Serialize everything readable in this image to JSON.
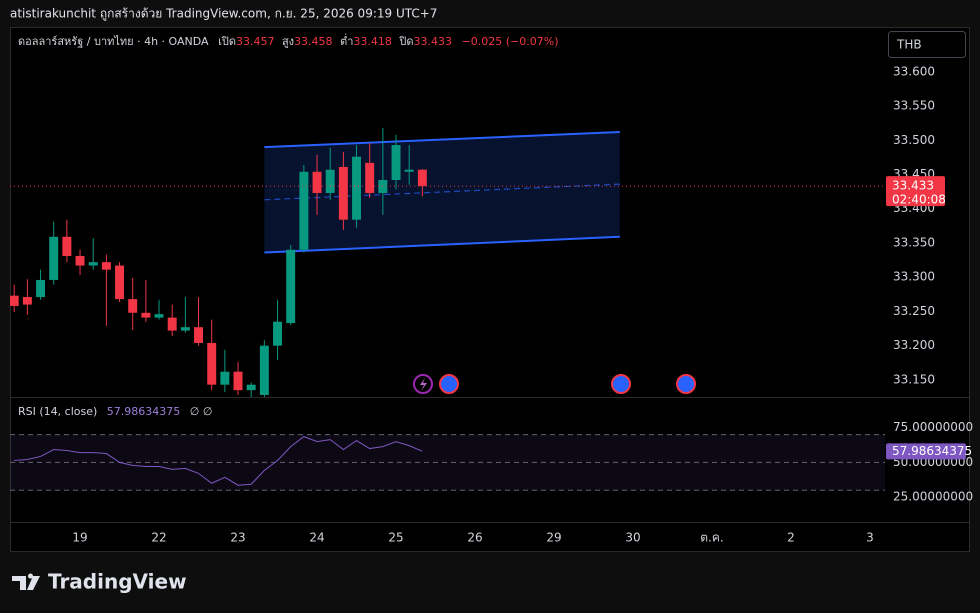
{
  "header": "atistirakunchit ถูกสร้างด้วย TradingView.com, ก.ย. 25, 2026 09:19 UTC+7",
  "currency_button": "THB",
  "brand": "TradingView",
  "chart_data": [
    {
      "type": "candlestick",
      "title": "ดอลลาร์สหรัฐ / บาทไทย · 4h · OANDA",
      "ohlc_labels": [
        "เปิด",
        "สูง",
        "ต่ำ",
        "ปิด"
      ],
      "change": "−0.025 (−0.07%)",
      "x": [
        -5,
        -4,
        -3,
        -2,
        -1,
        0,
        1,
        2,
        3,
        4,
        5,
        6,
        7,
        8,
        9,
        10,
        11,
        12,
        13,
        14,
        15,
        16,
        17,
        18,
        19,
        20,
        21,
        22,
        23,
        24,
        25,
        26
      ],
      "open": [
        33.273,
        33.271,
        33.271,
        33.296,
        33.359,
        33.331,
        33.317,
        33.322,
        33.317,
        33.268,
        33.248,
        33.241,
        33.241,
        33.222,
        33.227,
        33.204,
        33.143,
        33.162,
        33.135,
        33.128,
        33.2,
        33.233,
        33.34,
        33.454,
        33.423,
        33.461,
        33.384,
        33.467,
        33.423,
        33.442,
        33.454,
        33.457
      ],
      "high": [
        33.289,
        33.297,
        33.311,
        33.381,
        33.384,
        33.34,
        33.357,
        33.333,
        33.322,
        33.299,
        33.296,
        33.267,
        33.26,
        33.271,
        33.271,
        33.238,
        33.194,
        33.176,
        33.146,
        33.208,
        33.267,
        33.347,
        33.464,
        33.479,
        33.489,
        33.483,
        33.493,
        33.496,
        33.518,
        33.508,
        33.493,
        33.458
      ],
      "low": [
        33.249,
        33.245,
        33.267,
        33.289,
        33.322,
        33.303,
        33.311,
        33.229,
        33.264,
        33.223,
        33.235,
        33.238,
        33.214,
        33.219,
        33.2,
        33.135,
        33.132,
        33.128,
        33.125,
        33.125,
        33.179,
        33.23,
        33.336,
        33.391,
        33.413,
        33.369,
        33.372,
        33.416,
        33.391,
        33.428,
        33.435,
        33.418
      ],
      "close": [
        33.258,
        33.26,
        33.296,
        33.359,
        33.331,
        33.317,
        33.322,
        33.311,
        33.268,
        33.248,
        33.241,
        33.246,
        33.222,
        33.227,
        33.204,
        33.143,
        33.162,
        33.135,
        33.143,
        33.2,
        33.235,
        33.34,
        33.454,
        33.423,
        33.457,
        33.384,
        33.476,
        33.423,
        33.442,
        33.493,
        33.457,
        33.433
      ],
      "up_color": "#089981",
      "down_color": "#f23645",
      "xlim": [
        -5.32,
        61.14
      ],
      "ylim": [
        33.125,
        33.664
      ],
      "yticks": [
        {
          "value": 33.6,
          "label": "33.600"
        },
        {
          "value": 33.55,
          "label": "33.550"
        },
        {
          "value": 33.5,
          "label": "33.500"
        },
        {
          "value": 33.45,
          "label": "33.450"
        },
        {
          "value": 33.4,
          "label": "33.400"
        },
        {
          "value": 33.35,
          "label": "33.350"
        },
        {
          "value": 33.3,
          "label": "33.300"
        },
        {
          "value": 33.25,
          "label": "33.250"
        },
        {
          "value": 33.2,
          "label": "33.200"
        },
        {
          "value": 33.15,
          "label": "33.150"
        }
      ],
      "countdown": "02:40:08",
      "channel": {
        "color": "#2962ff",
        "upper": {
          "x": [
            14,
            41
          ],
          "y": [
            33.49,
            33.512
          ]
        },
        "middle": {
          "x": [
            14,
            41
          ],
          "y": [
            33.413,
            33.436
          ]
        },
        "lower": {
          "x": [
            14,
            41
          ],
          "y": [
            33.336,
            33.359
          ]
        }
      }
    },
    {
      "type": "line",
      "title": "RSI (14, close)",
      "inputs": "∅ ∅",
      "color": "#7e57c2",
      "x": [
        -5,
        -4,
        -3,
        -2,
        -1,
        0,
        1,
        2,
        3,
        4,
        5,
        6,
        7,
        8,
        9,
        10,
        11,
        12,
        13,
        14,
        15,
        16,
        17,
        18,
        19,
        20,
        21,
        22,
        23,
        24,
        25,
        26
      ],
      "values": [
        51.4,
        52.1,
        54.3,
        59.3,
        58.6,
        57.1,
        57.1,
        56.4,
        50.0,
        47.9,
        47.1,
        47.1,
        45.0,
        45.7,
        42.1,
        35.0,
        39.3,
        33.6,
        34.3,
        44.3,
        51.4,
        61.4,
        68.6,
        65.0,
        66.4,
        59.3,
        65.7,
        60.0,
        61.4,
        65.0,
        62.1,
        57.98634375
      ],
      "band": [
        30,
        70
      ],
      "midline": 50,
      "xlim": [
        -5.32,
        61.14
      ],
      "ylim": [
        7.1,
        96.4
      ],
      "yticks": [
        {
          "value": 75,
          "label": "75.00000000"
        },
        {
          "value": 50,
          "label": "50.00000000"
        },
        {
          "value": 25,
          "label": "25.00000000"
        }
      ],
      "xticks": [
        {
          "value": 0,
          "label": "19"
        },
        {
          "value": 6,
          "label": "22"
        },
        {
          "value": 12,
          "label": "23"
        },
        {
          "value": 18,
          "label": "24"
        },
        {
          "value": 24,
          "label": "25"
        },
        {
          "value": 30,
          "label": "26"
        },
        {
          "value": 36,
          "label": "29"
        },
        {
          "value": 42,
          "label": "30"
        },
        {
          "value": 48,
          "label": "ต.ค."
        },
        {
          "value": 54,
          "label": "2"
        },
        {
          "value": 60,
          "label": "3"
        }
      ]
    }
  ]
}
